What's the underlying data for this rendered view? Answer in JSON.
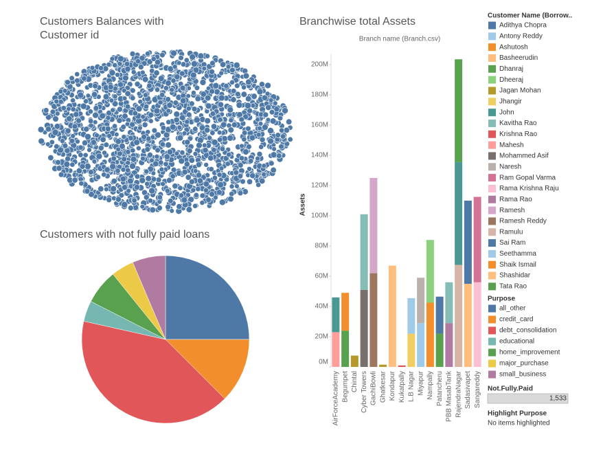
{
  "chart_data": [
    {
      "type": "packed_bubble",
      "title": "Customers Balances with Customer id",
      "color": "#4e79a7"
    },
    {
      "type": "pie",
      "title": "Customers with not fully paid loans",
      "legend_title": "Purpose",
      "categories": [
        "all_other",
        "credit_card",
        "debt_consolidation",
        "educational",
        "home_improvement",
        "major_purchase",
        "small_business"
      ],
      "values": [
        25,
        12.5,
        41,
        4,
        6.7,
        4.4,
        6.4
      ],
      "colors": [
        "#4e79a7",
        "#f28e2b",
        "#e15759",
        "#76b7b2",
        "#59a14f",
        "#edc948",
        "#b07aa1"
      ]
    },
    {
      "type": "stacked_bar",
      "title": "Branchwise total Assets",
      "x_header": "Branch name (Branch.csv)",
      "ylabel": "Assets",
      "legend_title": "Customer Name (Borrow..",
      "categories": [
        "AirForceAcademy",
        "Begumpet",
        "Chintal",
        "Cyber Towers",
        "GachiBowli",
        "Ghatkesar",
        "Kondapur",
        "Kukatpally",
        "L.B Nagar",
        "Miyapur",
        "Nampally",
        "Patancheru",
        "PBB MasabTank",
        "RajendraNagar",
        "Sadasivapet",
        "Sangareddy"
      ],
      "series": [
        {
          "name": "Adithya Chopra",
          "color": "#4e79a7",
          "values": [
            null,
            null,
            null,
            null,
            null,
            null,
            null,
            null,
            null,
            null,
            null,
            null,
            null,
            null,
            55,
            null
          ]
        },
        {
          "name": "Antony Reddy",
          "color": "#a0cbe8",
          "values": [
            null,
            null,
            null,
            null,
            null,
            null,
            null,
            null,
            23.5,
            null,
            null,
            null,
            null,
            null,
            null,
            null
          ]
        },
        {
          "name": "Ashutosh",
          "color": "#f28e2b",
          "values": [
            null,
            25,
            null,
            null,
            null,
            null,
            null,
            null,
            null,
            null,
            null,
            null,
            null,
            null,
            null,
            null
          ]
        },
        {
          "name": "Basheerudin",
          "color": "#ffbe7d",
          "values": [
            null,
            null,
            null,
            null,
            null,
            null,
            67,
            null,
            null,
            null,
            null,
            null,
            null,
            null,
            null,
            null
          ]
        },
        {
          "name": "Dhanraj",
          "color": "#59a14f",
          "values": [
            null,
            24,
            null,
            null,
            null,
            null,
            null,
            null,
            null,
            null,
            null,
            null,
            null,
            68,
            null,
            null
          ]
        },
        {
          "name": "Dheeraj",
          "color": "#8cd17d",
          "values": [
            null,
            null,
            null,
            null,
            null,
            null,
            null,
            null,
            null,
            null,
            41.5,
            null,
            null,
            null,
            null,
            null
          ]
        },
        {
          "name": "Jagan Mohan",
          "color": "#b6992d",
          "values": [
            null,
            null,
            7.5,
            null,
            null,
            1.5,
            null,
            null,
            null,
            null,
            null,
            null,
            null,
            null,
            null,
            null
          ]
        },
        {
          "name": "Jhangir",
          "color": "#f1ce63",
          "values": [
            null,
            null,
            null,
            null,
            null,
            null,
            null,
            null,
            22,
            null,
            null,
            null,
            null,
            null,
            null,
            null
          ]
        },
        {
          "name": "John",
          "color": "#499894",
          "values": [
            23,
            null,
            null,
            null,
            null,
            null,
            null,
            null,
            null,
            null,
            null,
            null,
            null,
            68,
            null,
            null
          ]
        },
        {
          "name": "Kavitha Rao",
          "color": "#86bcb6",
          "values": [
            null,
            null,
            null,
            50,
            null,
            null,
            null,
            null,
            null,
            null,
            null,
            null,
            27,
            null,
            null,
            null
          ]
        },
        {
          "name": "Krishna Rao",
          "color": "#e15759",
          "values": [
            null,
            null,
            null,
            null,
            null,
            null,
            null,
            1,
            null,
            null,
            null,
            null,
            null,
            null,
            null,
            null
          ]
        },
        {
          "name": "Mahesh",
          "color": "#ff9d9a",
          "values": [
            23,
            null,
            null,
            null,
            null,
            null,
            null,
            null,
            null,
            null,
            null,
            null,
            null,
            null,
            null,
            null
          ]
        },
        {
          "name": "Mohammed Asif",
          "color": "#79706e",
          "values": [
            null,
            null,
            null,
            51,
            null,
            null,
            null,
            null,
            null,
            null,
            null,
            null,
            null,
            null,
            null,
            null
          ]
        },
        {
          "name": "Naresh",
          "color": "#bab0ac",
          "values": [
            null,
            null,
            null,
            null,
            null,
            null,
            null,
            null,
            null,
            30,
            null,
            null,
            null,
            null,
            null,
            null
          ]
        },
        {
          "name": "Ram Gopal Varma",
          "color": "#d37295",
          "values": [
            null,
            null,
            null,
            null,
            null,
            null,
            null,
            null,
            null,
            null,
            null,
            null,
            null,
            null,
            null,
            56.5
          ]
        },
        {
          "name": "Rama Krishna Raju",
          "color": "#fabfd2",
          "values": [
            null,
            null,
            null,
            null,
            null,
            null,
            null,
            null,
            null,
            null,
            null,
            null,
            null,
            null,
            null,
            56
          ]
        },
        {
          "name": "Rama Rao",
          "color": "#b07aa1",
          "values": [
            null,
            null,
            null,
            null,
            null,
            null,
            null,
            null,
            null,
            null,
            null,
            null,
            29,
            null,
            null,
            null
          ]
        },
        {
          "name": "Ramesh",
          "color": "#d4a6c8",
          "values": [
            null,
            null,
            null,
            null,
            63,
            null,
            null,
            null,
            null,
            null,
            null,
            null,
            null,
            null,
            null,
            null
          ]
        },
        {
          "name": "Ramesh Reddy",
          "color": "#9d7660",
          "values": [
            null,
            null,
            null,
            null,
            62,
            null,
            null,
            null,
            null,
            null,
            null,
            null,
            null,
            null,
            null,
            null
          ]
        },
        {
          "name": "Ramulu",
          "color": "#d7b5a6",
          "values": [
            null,
            null,
            null,
            null,
            null,
            null,
            null,
            null,
            null,
            null,
            null,
            null,
            null,
            67.5,
            null,
            null
          ]
        },
        {
          "name": "Sai Ram",
          "color": "#4e79a7",
          "values": [
            null,
            null,
            null,
            null,
            null,
            null,
            null,
            null,
            null,
            null,
            null,
            24.5,
            null,
            null,
            null,
            null
          ]
        },
        {
          "name": "Seethamma",
          "color": "#a0cbe8",
          "values": [
            null,
            null,
            null,
            null,
            null,
            null,
            null,
            null,
            null,
            29,
            null,
            null,
            null,
            null,
            null,
            null
          ]
        },
        {
          "name": "Shaik Ismail",
          "color": "#f28e2b",
          "values": [
            null,
            null,
            null,
            null,
            null,
            null,
            null,
            null,
            null,
            null,
            42.5,
            null,
            null,
            null,
            null,
            null
          ]
        },
        {
          "name": "Shashidar",
          "color": "#ffbe7d",
          "values": [
            null,
            null,
            null,
            null,
            null,
            null,
            null,
            null,
            null,
            null,
            null,
            null,
            null,
            null,
            55,
            null
          ]
        },
        {
          "name": "Tata Rao",
          "color": "#59a14f",
          "values": [
            null,
            null,
            null,
            null,
            null,
            null,
            null,
            null,
            null,
            null,
            null,
            22,
            null,
            null,
            null,
            null
          ]
        }
      ],
      "ylim": [
        0,
        207
      ],
      "yticks": [
        {
          "value": 0,
          "label": "0M"
        },
        {
          "value": 20,
          "label": "20M"
        },
        {
          "value": 40,
          "label": "40M"
        },
        {
          "value": 60,
          "label": "60M"
        },
        {
          "value": 80,
          "label": "80M"
        },
        {
          "value": 100,
          "label": "100M"
        },
        {
          "value": 120,
          "label": "120M"
        },
        {
          "value": 140,
          "label": "140M"
        },
        {
          "value": 160,
          "label": "160M"
        },
        {
          "value": 180,
          "label": "180M"
        },
        {
          "value": 200,
          "label": "200M"
        }
      ],
      "grid": false
    }
  ],
  "filter": {
    "title": "Not.Fully.Paid",
    "value": "1,533"
  },
  "highlight": {
    "title": "Highlight Purpose",
    "text": "No items highlighted"
  }
}
